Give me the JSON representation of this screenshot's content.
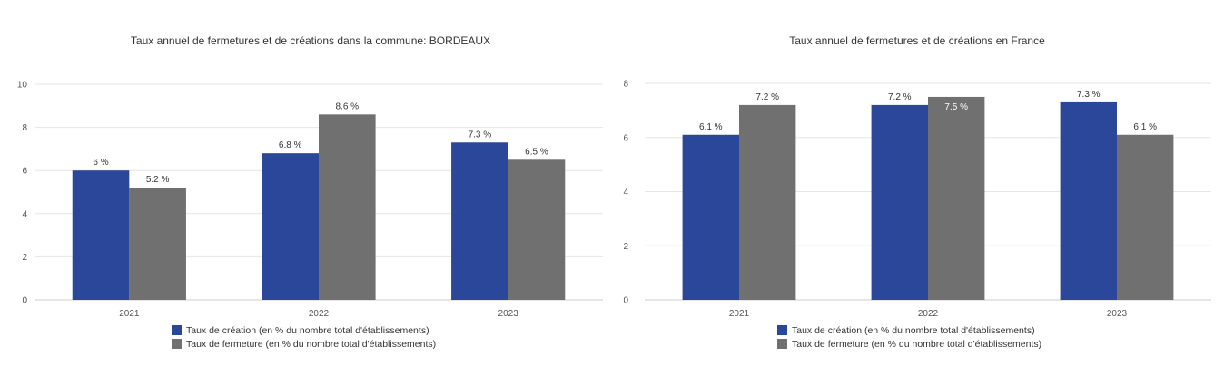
{
  "colors": {
    "creation": "#2b479a",
    "fermeture": "#707070"
  },
  "legend": {
    "creation": "Taux de création (en % du nombre total d'établissements)",
    "fermeture": "Taux de fermeture (en % du nombre total d'établissements)"
  },
  "chart_data": [
    {
      "type": "bar",
      "title": "Taux annuel de fermetures et de créations dans la commune: BORDEAUX",
      "categories": [
        "2021",
        "2022",
        "2023"
      ],
      "series": [
        {
          "name": "Taux de création (en % du nombre total d'établissements)",
          "values": [
            6,
            6.8,
            7.3
          ],
          "labels": [
            "6 %",
            "6.8 %",
            "7.3 %"
          ]
        },
        {
          "name": "Taux de fermeture (en % du nombre total d'établissements)",
          "values": [
            5.2,
            8.6,
            6.5
          ],
          "labels": [
            "5.2 %",
            "8.6 %",
            "6.5 %"
          ]
        }
      ],
      "ylim": [
        0,
        10
      ],
      "yticks": [
        0,
        2,
        4,
        6,
        8,
        10
      ],
      "grid": true,
      "legend_position": "bottom"
    },
    {
      "type": "bar",
      "title": "Taux annuel de fermetures et de créations en France",
      "categories": [
        "2021",
        "2022",
        "2023"
      ],
      "series": [
        {
          "name": "Taux de création (en % du nombre total d'établissements)",
          "values": [
            6.1,
            7.2,
            7.3
          ],
          "labels": [
            "6.1 %",
            "7.2 %",
            "7.3 %"
          ]
        },
        {
          "name": "Taux de fermeture (en % du nombre total d'établissements)",
          "values": [
            7.2,
            7.5,
            6.1
          ],
          "labels": [
            "7.2 %",
            "7.5 %",
            "6.1 %"
          ]
        }
      ],
      "ylim": [
        0,
        8
      ],
      "yticks": [
        0,
        2,
        4,
        6,
        8
      ],
      "grid": true,
      "legend_position": "bottom"
    }
  ]
}
